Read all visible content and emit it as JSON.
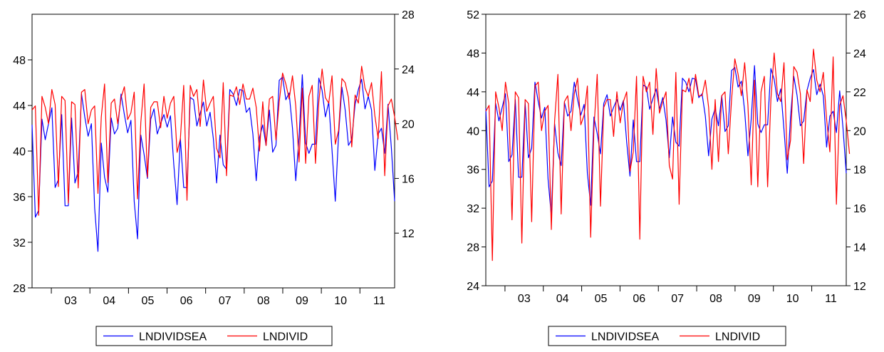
{
  "chart_data": [
    {
      "type": "line",
      "x_axis": {
        "categories": [
          "03",
          "04",
          "05",
          "06",
          "07",
          "08",
          "09",
          "10",
          "11"
        ],
        "start": 2002.5,
        "end": 2011.9
      },
      "left_axis": {
        "min": 28,
        "max": 52,
        "ticks": [
          28,
          32,
          36,
          40,
          44,
          48
        ]
      },
      "right_axis": {
        "min": 8,
        "max": 28,
        "ticks": [
          12,
          16,
          20,
          24,
          28
        ]
      },
      "series": [
        {
          "name": "LNDIVIDSEA",
          "axis": "left",
          "color": "#0000ff",
          "values": [
            42.3,
            34.2,
            34.8,
            42.8,
            41.0,
            42.4,
            43.8,
            36.8,
            37.5,
            43.2,
            35.2,
            35.2,
            42.9,
            37.2,
            38.2,
            45.0,
            43.0,
            41.3,
            42.4,
            35.0,
            31.2,
            40.7,
            37.7,
            36.4,
            42.9,
            41.5,
            42.0,
            45.0,
            43.2,
            41.6,
            42.7,
            35.6,
            32.3,
            41.4,
            39.7,
            37.6,
            42.8,
            43.7,
            41.5,
            42.4,
            43.2,
            42.1,
            43.1,
            38.8,
            35.3,
            41.1,
            36.8,
            36.8,
            44.7,
            44.5,
            42.2,
            43.3,
            44.3,
            42.2,
            43.4,
            41.1,
            37.2,
            41.4,
            38.8,
            38.4,
            45.4,
            45.0,
            44.0,
            45.4,
            45.3,
            43.4,
            43.8,
            41.5,
            37.4,
            41.2,
            42.3,
            40.5,
            43.6,
            39.9,
            40.5,
            46.2,
            46.5,
            44.5,
            45.1,
            42.0,
            37.4,
            41.2,
            46.7,
            40.7,
            39.8,
            40.6,
            40.6,
            46.4,
            45.3,
            43.0,
            44.3,
            40.1,
            35.6,
            41.4,
            45.6,
            43.6,
            40.5,
            41.0,
            44.1,
            45.4,
            46.3,
            43.7,
            44.8,
            43.6,
            38.3,
            41.5,
            42.0,
            39.8,
            44.1,
            40.3,
            35.6
          ]
        },
        {
          "name": "LNDIVID",
          "axis": "right",
          "color": "#ff0000",
          "values": [
            21.0,
            21.3,
            13.3,
            22.0,
            21.2,
            20.0,
            22.5,
            21.4,
            15.4,
            22.0,
            21.7,
            14.2,
            21.6,
            21.4,
            15.3,
            22.3,
            22.5,
            20.0,
            21.0,
            21.3,
            14.9,
            20.5,
            22.9,
            15.7,
            21.5,
            21.8,
            20.0,
            21.9,
            22.7,
            20.3,
            20.8,
            22.3,
            14.5,
            20.1,
            22.9,
            16.1,
            21.2,
            21.6,
            21.6,
            19.7,
            22.0,
            20.4,
            21.5,
            22.0,
            17.9,
            18.9,
            22.8,
            14.4,
            22.8,
            22.0,
            22.5,
            19.8,
            23.2,
            20.9,
            21.5,
            22.0,
            18.2,
            17.5,
            23.0,
            16.2,
            22.1,
            22.0,
            22.7,
            21.4,
            22.9,
            21.8,
            21.8,
            22.6,
            21.2,
            18.0,
            21.6,
            18.4,
            21.8,
            22.0,
            18.8,
            21.6,
            23.7,
            22.9,
            21.8,
            23.5,
            21.3,
            17.2,
            22.6,
            17.1,
            22.0,
            22.8,
            17.1,
            21.6,
            24.0,
            21.9,
            21.5,
            23.5,
            18.5,
            19.5,
            23.3,
            23.0,
            21.9,
            18.3,
            22.1,
            21.5,
            24.2,
            22.6,
            22.0,
            23.0,
            20.6,
            18.9,
            23.8,
            16.2,
            21.3,
            21.8,
            20.5,
            18.8
          ]
        }
      ],
      "legend": {
        "position": "bottom-center",
        "entries": [
          "LNDIVIDSEA",
          "LNDIVID"
        ]
      },
      "grid": false
    },
    {
      "type": "line",
      "x_axis": {
        "categories": [
          "03",
          "04",
          "05",
          "06",
          "07",
          "08",
          "09",
          "10",
          "11"
        ],
        "start": 2002.5,
        "end": 2011.9
      },
      "left_axis": {
        "min": 24,
        "max": 52,
        "ticks": [
          24,
          28,
          32,
          36,
          40,
          44,
          48,
          52
        ]
      },
      "right_axis": {
        "min": 12,
        "max": 26,
        "ticks": [
          12,
          14,
          16,
          18,
          20,
          22,
          24,
          26
        ]
      },
      "series": [
        {
          "name": "LNDIVIDSEA",
          "axis": "left",
          "color": "#0000ff",
          "values": [
            42.3,
            34.2,
            34.8,
            42.8,
            41.0,
            42.4,
            43.8,
            36.8,
            37.5,
            43.2,
            35.2,
            35.2,
            42.9,
            37.2,
            38.2,
            45.0,
            43.0,
            41.3,
            42.4,
            35.0,
            31.2,
            40.7,
            37.7,
            36.4,
            42.9,
            41.5,
            42.0,
            45.0,
            43.2,
            41.6,
            42.7,
            35.6,
            32.3,
            41.4,
            39.7,
            37.6,
            42.8,
            43.7,
            41.5,
            42.4,
            43.2,
            42.1,
            43.1,
            38.8,
            35.3,
            41.1,
            36.8,
            36.8,
            44.7,
            44.5,
            42.2,
            43.3,
            44.3,
            42.2,
            43.4,
            41.1,
            37.2,
            41.4,
            38.8,
            38.4,
            45.4,
            45.0,
            44.0,
            45.4,
            45.3,
            43.4,
            43.8,
            41.5,
            37.4,
            41.2,
            42.3,
            40.5,
            43.6,
            39.9,
            40.5,
            46.2,
            46.5,
            44.5,
            45.1,
            42.0,
            37.4,
            41.2,
            46.7,
            40.7,
            39.8,
            40.6,
            40.6,
            46.4,
            45.3,
            43.0,
            44.3,
            40.1,
            35.6,
            41.4,
            45.6,
            43.6,
            40.5,
            41.0,
            44.1,
            45.4,
            46.3,
            43.7,
            44.8,
            43.6,
            38.3,
            41.5,
            42.0,
            39.8,
            44.1,
            40.3,
            35.6
          ]
        },
        {
          "name": "LNDIVID",
          "axis": "right",
          "color": "#ff0000",
          "values": [
            21.0,
            21.3,
            13.3,
            22.0,
            21.2,
            20.0,
            22.5,
            21.4,
            15.4,
            22.0,
            21.7,
            14.2,
            21.6,
            21.4,
            15.3,
            22.3,
            22.5,
            20.0,
            21.0,
            21.3,
            14.9,
            20.5,
            22.9,
            15.7,
            21.5,
            21.8,
            20.0,
            21.9,
            22.7,
            20.3,
            20.8,
            22.3,
            14.5,
            20.1,
            22.9,
            16.1,
            21.2,
            21.6,
            21.6,
            19.7,
            22.0,
            20.4,
            21.5,
            22.0,
            17.9,
            18.9,
            22.8,
            14.4,
            22.8,
            22.0,
            22.5,
            19.8,
            23.2,
            20.9,
            21.5,
            22.0,
            18.2,
            17.5,
            23.0,
            16.2,
            22.1,
            22.0,
            22.7,
            21.4,
            22.9,
            21.8,
            21.8,
            22.6,
            21.2,
            18.0,
            21.6,
            18.4,
            21.8,
            22.0,
            18.8,
            21.6,
            23.7,
            22.9,
            21.8,
            23.5,
            21.3,
            17.2,
            22.6,
            17.1,
            22.0,
            22.8,
            17.1,
            21.6,
            24.0,
            21.9,
            21.5,
            23.5,
            18.5,
            19.5,
            23.3,
            23.0,
            21.9,
            18.3,
            22.1,
            21.5,
            24.2,
            22.6,
            22.0,
            23.0,
            20.6,
            18.9,
            23.8,
            16.2,
            21.3,
            21.8,
            20.5,
            18.8
          ]
        }
      ],
      "legend": {
        "position": "bottom-center",
        "entries": [
          "LNDIVIDSEA",
          "LNDIVID"
        ]
      },
      "grid": false
    }
  ]
}
